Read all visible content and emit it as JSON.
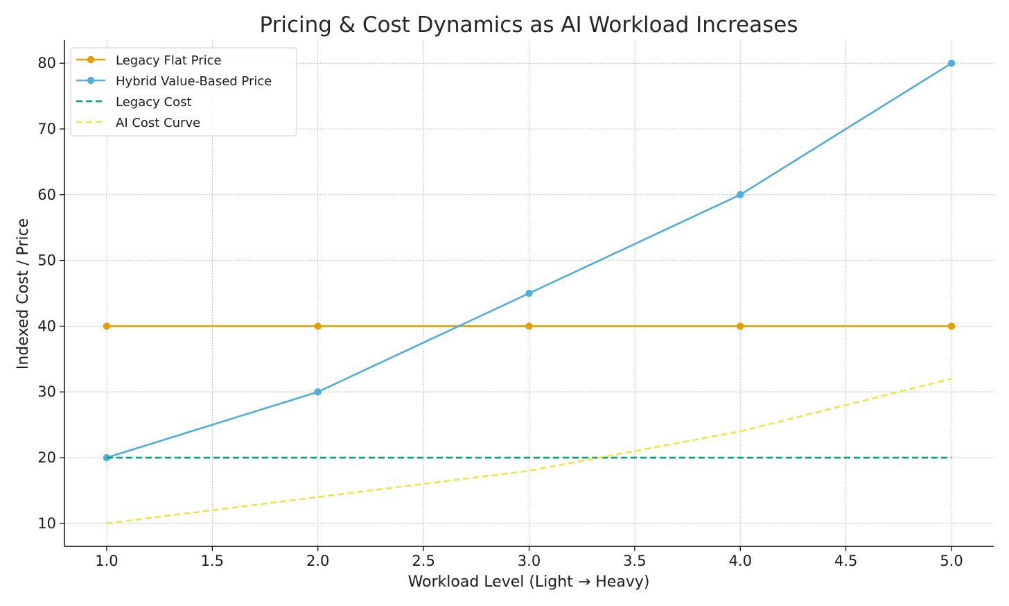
{
  "chart_data": {
    "type": "line",
    "title": "Pricing & Cost Dynamics as AI Workload Increases",
    "xlabel": "Workload Level (Light → Heavy)",
    "ylabel": "Indexed Cost / Price",
    "xlim": [
      0.8,
      5.2
    ],
    "ylim": [
      6.5,
      83.5
    ],
    "xticks": [
      1.0,
      1.5,
      2.0,
      2.5,
      3.0,
      3.5,
      4.0,
      4.5,
      5.0
    ],
    "xtick_labels": [
      "1.0",
      "1.5",
      "2.0",
      "2.5",
      "3.0",
      "3.5",
      "4.0",
      "4.5",
      "5.0"
    ],
    "yticks": [
      10,
      20,
      30,
      40,
      50,
      60,
      70,
      80
    ],
    "ytick_labels": [
      "10",
      "20",
      "30",
      "40",
      "50",
      "60",
      "70",
      "80"
    ],
    "grid": true,
    "legend_position": "top-left",
    "x": [
      1,
      2,
      3,
      4,
      5
    ],
    "series": [
      {
        "name": "Legacy Flat Price",
        "values": [
          40,
          40,
          40,
          40,
          40
        ],
        "color": "#E69F00",
        "style": "solid",
        "marker": true
      },
      {
        "name": "Hybrid Value-Based Price",
        "values": [
          20,
          30,
          45,
          60,
          80
        ],
        "color": "#4FADDB",
        "style": "solid",
        "marker": true
      },
      {
        "name": "Legacy Cost",
        "values": [
          20,
          20,
          20,
          20,
          20
        ],
        "color": "#009E73",
        "style": "dashed",
        "marker": false
      },
      {
        "name": "AI Cost Curve",
        "values": [
          10,
          14,
          18,
          24,
          32
        ],
        "color": "#F0E442",
        "style": "dashed",
        "marker": false
      }
    ]
  }
}
